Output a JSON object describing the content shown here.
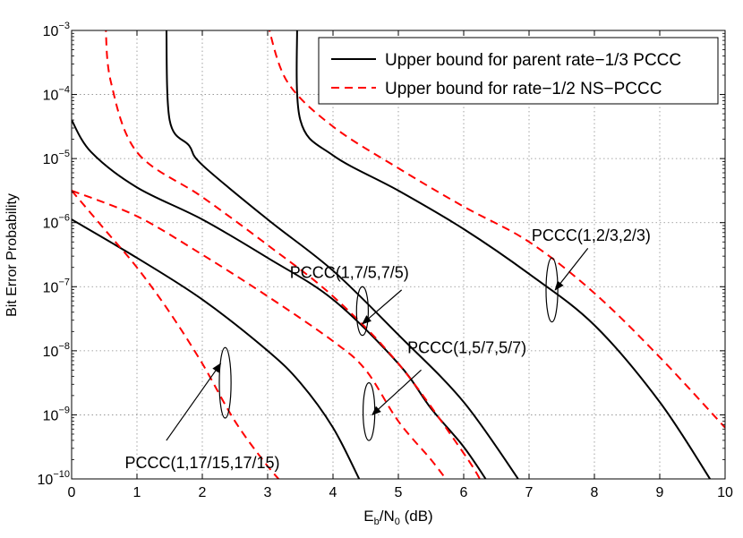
{
  "chart_data": {
    "type": "line",
    "title": "",
    "xlabel": {
      "main": "E",
      "sub1": "b",
      "mid": "/N",
      "sub2": "0",
      "tail": " (dB)"
    },
    "ylabel": "Bit Error Probability",
    "xlim": [
      0,
      10
    ],
    "ylim_exp": [
      -10,
      -3
    ],
    "yscale": "log",
    "grid": true,
    "x_ticks": [
      "0",
      "1",
      "2",
      "3",
      "4",
      "5",
      "6",
      "7",
      "8",
      "9",
      "10"
    ],
    "y_ticks": [
      {
        "base": "10",
        "exp": "−3"
      },
      {
        "base": "10",
        "exp": "−4"
      },
      {
        "base": "10",
        "exp": "−5"
      },
      {
        "base": "10",
        "exp": "−6"
      },
      {
        "base": "10",
        "exp": "−7"
      },
      {
        "base": "10",
        "exp": "−8"
      },
      {
        "base": "10",
        "exp": "−9"
      },
      {
        "base": "10",
        "exp": "−10"
      }
    ],
    "legend": {
      "position": "top-right",
      "entries": [
        {
          "label": "Upper bound for parent rate−1/3 PCCC",
          "color": "#000000",
          "style": "solid"
        },
        {
          "label": "Upper bound for rate−1/2 NS−PCCC",
          "color": "#ff0000",
          "style": "dashed"
        }
      ]
    },
    "series": [
      {
        "name": "Upper bound for parent rate−1/3 PCCC — PCCC(1,17/15,17/15)",
        "color": "#000000",
        "style": "solid",
        "points": [
          [
            0,
            -5.95
          ],
          [
            1,
            -6.55
          ],
          [
            2,
            -7.2
          ],
          [
            3,
            -8
          ],
          [
            3.5,
            -8.5
          ],
          [
            4,
            -9.2
          ],
          [
            4.4,
            -10
          ]
        ]
      },
      {
        "name": "Upper bound for rate−1/2 NS−PCCC — PCCC(1,17/15,17/15)",
        "color": "#ff0000",
        "style": "dashed",
        "points": [
          [
            0,
            -5.5
          ],
          [
            0.5,
            -6.1
          ],
          [
            1,
            -6.7
          ],
          [
            1.5,
            -7.4
          ],
          [
            2,
            -8.2
          ],
          [
            2.5,
            -9.1
          ],
          [
            3,
            -9.8
          ],
          [
            3.35,
            -10.2
          ]
        ]
      },
      {
        "name": "Upper bound for parent rate−1/3 PCCC — PCCC(1,7/5,7/5)",
        "color": "#000000",
        "style": "solid",
        "points": [
          [
            0,
            -4.4
          ],
          [
            0.3,
            -4.9
          ],
          [
            1,
            -5.45
          ],
          [
            2,
            -5.95
          ],
          [
            3,
            -6.55
          ],
          [
            4,
            -7.2
          ],
          [
            5,
            -8.2
          ],
          [
            5.5,
            -8.9
          ],
          [
            6,
            -9.5
          ],
          [
            6.4,
            -10.1
          ]
        ]
      },
      {
        "name": "Upper bound for rate−1/2 NS−PCCC — PCCC(1,7/5,7/5)",
        "color": "#ff0000",
        "style": "dashed",
        "points": [
          [
            0,
            -5.5
          ],
          [
            1,
            -5.9
          ],
          [
            2,
            -6.5
          ],
          [
            3,
            -7.15
          ],
          [
            4,
            -7.85
          ],
          [
            4.5,
            -8.3
          ],
          [
            5,
            -9.1
          ],
          [
            5.5,
            -9.7
          ],
          [
            5.8,
            -10.1
          ]
        ]
      },
      {
        "name": "Upper bound for parent rate−1/3 PCCC — PCCC(1,5/7,5/7)",
        "color": "#000000",
        "style": "solid",
        "points": [
          [
            1.45,
            -2.9
          ],
          [
            1.5,
            -4.4
          ],
          [
            1.8,
            -4.8
          ],
          [
            2,
            -5.1
          ],
          [
            3,
            -5.95
          ],
          [
            4,
            -6.75
          ],
          [
            5,
            -7.75
          ],
          [
            6,
            -8.8
          ],
          [
            6.9,
            -10.1
          ]
        ]
      },
      {
        "name": "Upper bound for rate−1/2 NS−PCCC — PCCC(1,5/7,5/7)",
        "color": "#ff0000",
        "style": "dashed",
        "points": [
          [
            0.52,
            -2.9
          ],
          [
            0.6,
            -3.8
          ],
          [
            1,
            -4.9
          ],
          [
            2,
            -5.6
          ],
          [
            3,
            -6.35
          ],
          [
            4,
            -7.15
          ],
          [
            5,
            -8.2
          ],
          [
            6,
            -9.6
          ],
          [
            6.3,
            -10.1
          ]
        ]
      },
      {
        "name": "Upper bound for parent rate−1/3 PCCC — PCCC(1,2/3,2/3)",
        "color": "#000000",
        "style": "solid",
        "points": [
          [
            3.45,
            -2.9
          ],
          [
            3.5,
            -4.4
          ],
          [
            4,
            -4.95
          ],
          [
            5,
            -5.5
          ],
          [
            6,
            -6.1
          ],
          [
            7,
            -6.8
          ],
          [
            8,
            -7.6
          ],
          [
            9,
            -8.8
          ],
          [
            9.8,
            -10.05
          ]
        ]
      },
      {
        "name": "Upper bound for rate−1/2 NS−PCCC — PCCC(1,2/3,2/3)",
        "color": "#ff0000",
        "style": "dashed",
        "points": [
          [
            3,
            -2.9
          ],
          [
            3.3,
            -3.8
          ],
          [
            4,
            -4.5
          ],
          [
            5,
            -5.15
          ],
          [
            6,
            -5.75
          ],
          [
            7,
            -6.3
          ],
          [
            8,
            -7.1
          ],
          [
            9,
            -8.1
          ],
          [
            10,
            -9.2
          ]
        ]
      }
    ],
    "annotations": [
      {
        "label": "PCCC(1,17/15,17/15)",
        "text_x": 2.0,
        "text_y": -9.75,
        "ellipse_x": 2.35,
        "ellipse_y": -8.5,
        "ellipse_dx": 0.09,
        "ellipse_dy": 0.55,
        "arrow_from": [
          1.45,
          -9.4
        ],
        "arrow_to": [
          2.28,
          -8.2
        ]
      },
      {
        "label": "PCCC(1,7/5,7/5)",
        "text_x": 4.25,
        "text_y": -6.78,
        "ellipse_x": 4.45,
        "ellipse_y": -7.38,
        "ellipse_dx": 0.09,
        "ellipse_dy": 0.38,
        "arrow_from": [
          5.05,
          -7.05
        ],
        "arrow_to": [
          4.45,
          -7.58
        ]
      },
      {
        "label": "PCCC(1,5/7,5/7)",
        "text_x": 6.05,
        "text_y": -7.95,
        "ellipse_x": 4.55,
        "ellipse_y": -8.95,
        "ellipse_dx": 0.09,
        "ellipse_dy": 0.45,
        "arrow_from": [
          5.35,
          -8.3
        ],
        "arrow_to": [
          4.6,
          -9.0
        ]
      },
      {
        "label": "PCCC(1,2/3,2/3)",
        "text_x": 7.95,
        "text_y": -6.2,
        "ellipse_x": 7.35,
        "ellipse_y": -7.05,
        "ellipse_dx": 0.09,
        "ellipse_dy": 0.5,
        "arrow_from": [
          7.9,
          -6.4
        ],
        "arrow_to": [
          7.4,
          -7.05
        ]
      }
    ]
  }
}
